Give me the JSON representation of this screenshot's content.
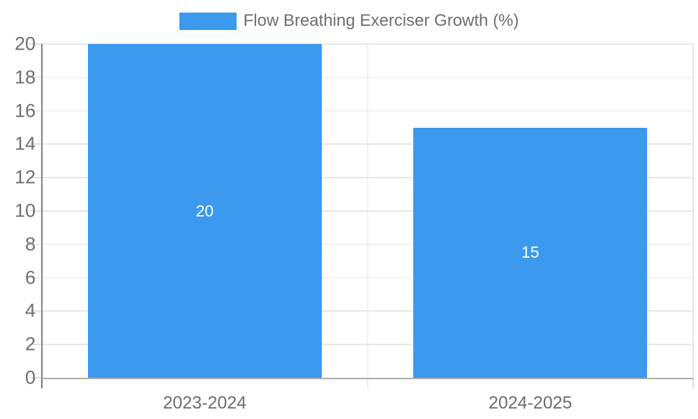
{
  "legend": {
    "label": "Flow Breathing Exerciser Growth (%)"
  },
  "colors": {
    "background": "#ffffff",
    "bar": "#3b99ee",
    "grid": "#e6e6e6",
    "y_axis_line": "#7c7c7c",
    "x_axis_line": "#ababab",
    "tick_text": "#6e6e6e",
    "bar_value_text": "#ffffff"
  },
  "chart_data": {
    "type": "bar",
    "title": "",
    "xlabel": "",
    "ylabel": "",
    "categories": [
      "2023-2024",
      "2024-2025"
    ],
    "series": [
      {
        "name": "Flow Breathing Exerciser Growth (%)",
        "values": [
          20,
          15
        ]
      }
    ],
    "values": [
      20,
      15
    ],
    "data_labels": [
      "20",
      "15"
    ],
    "ylim": [
      0,
      20
    ],
    "ytick_step": 2,
    "ytick_labels": [
      "0",
      "2",
      "4",
      "6",
      "8",
      "10",
      "12",
      "14",
      "16",
      "18",
      "20"
    ],
    "grid": "horizontal gridlines + vertical category boundary lines",
    "legend_position": "top-center",
    "bar_width_fraction": 0.718
  }
}
